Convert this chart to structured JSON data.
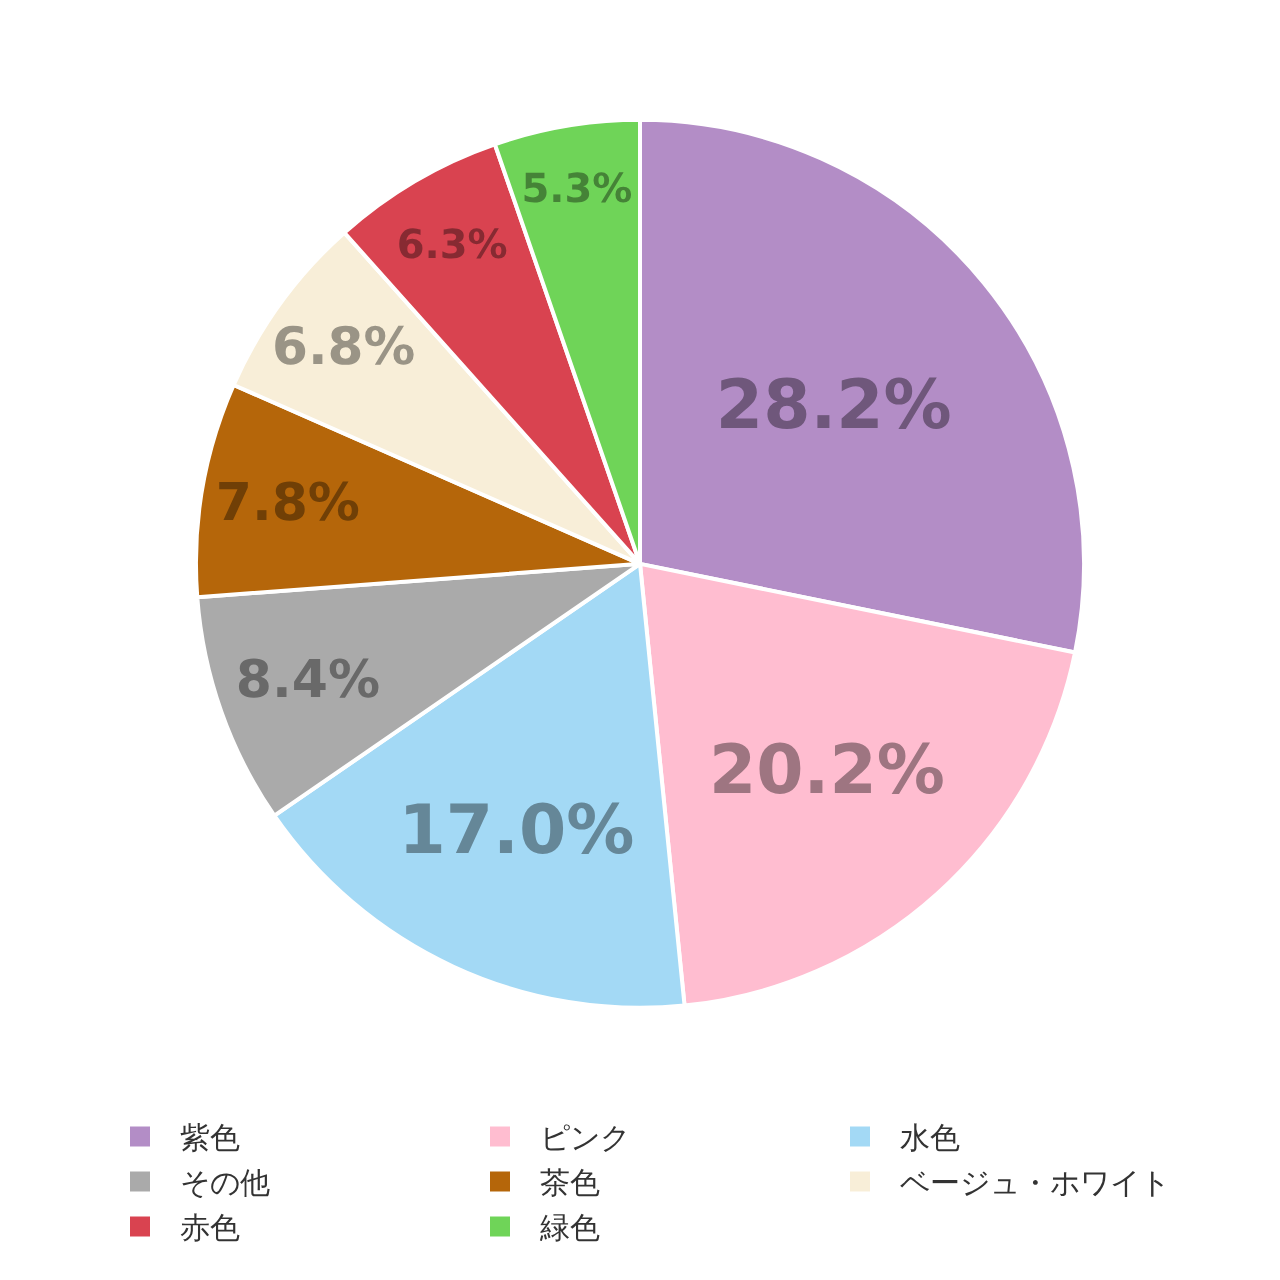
{
  "chart_data": {
    "type": "pie",
    "categories": [
      "紫色",
      "ピンク",
      "水色",
      "その他",
      "茶色",
      "ベージュ・ホワイト",
      "赤色",
      "緑色"
    ],
    "values": [
      28.2,
      20.2,
      17.0,
      8.4,
      7.8,
      6.8,
      6.3,
      5.3
    ],
    "colors": [
      "#b38dc6",
      "#ffbdd0",
      "#a3d9f5",
      "#aaaaaa",
      "#b5660a",
      "#f8eed8",
      "#d94350",
      "#6fd458"
    ],
    "value_labels": [
      "28.2%",
      "20.2%",
      "17.0%",
      "8.4%",
      "7.8%",
      "6.8%",
      "6.3%",
      "5.3%"
    ],
    "legend": "bottom"
  }
}
